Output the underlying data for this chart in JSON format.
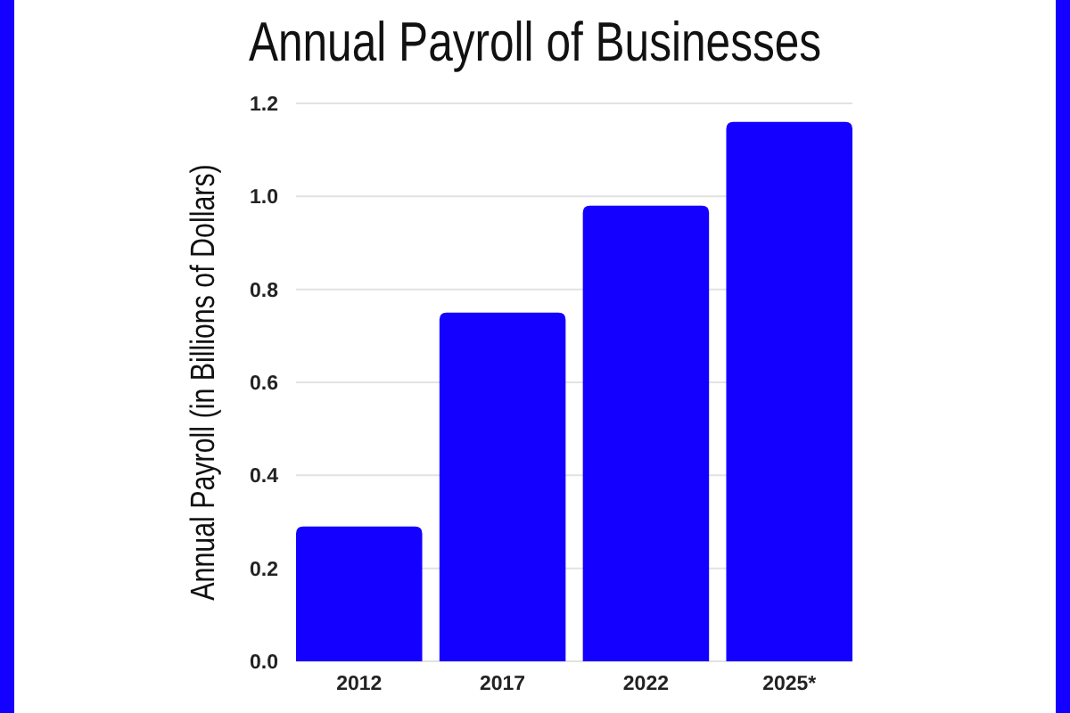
{
  "chart_data": {
    "type": "bar",
    "title": "Annual Payroll of Businesses",
    "ylabel": "Annual Payroll (in Billions of Dollars)",
    "categories": [
      "2012",
      "2017",
      "2022",
      "2025*"
    ],
    "values": [
      0.29,
      0.75,
      0.98,
      1.16
    ],
    "color": "#1400ff",
    "ylim": [
      0,
      1.2
    ],
    "yticks": [
      {
        "value": 0,
        "label": "0.0"
      },
      0.2,
      0.4,
      0.6,
      0.8,
      {
        "value": 1,
        "label": "1.0"
      },
      1.2
    ],
    "grid": "y"
  }
}
